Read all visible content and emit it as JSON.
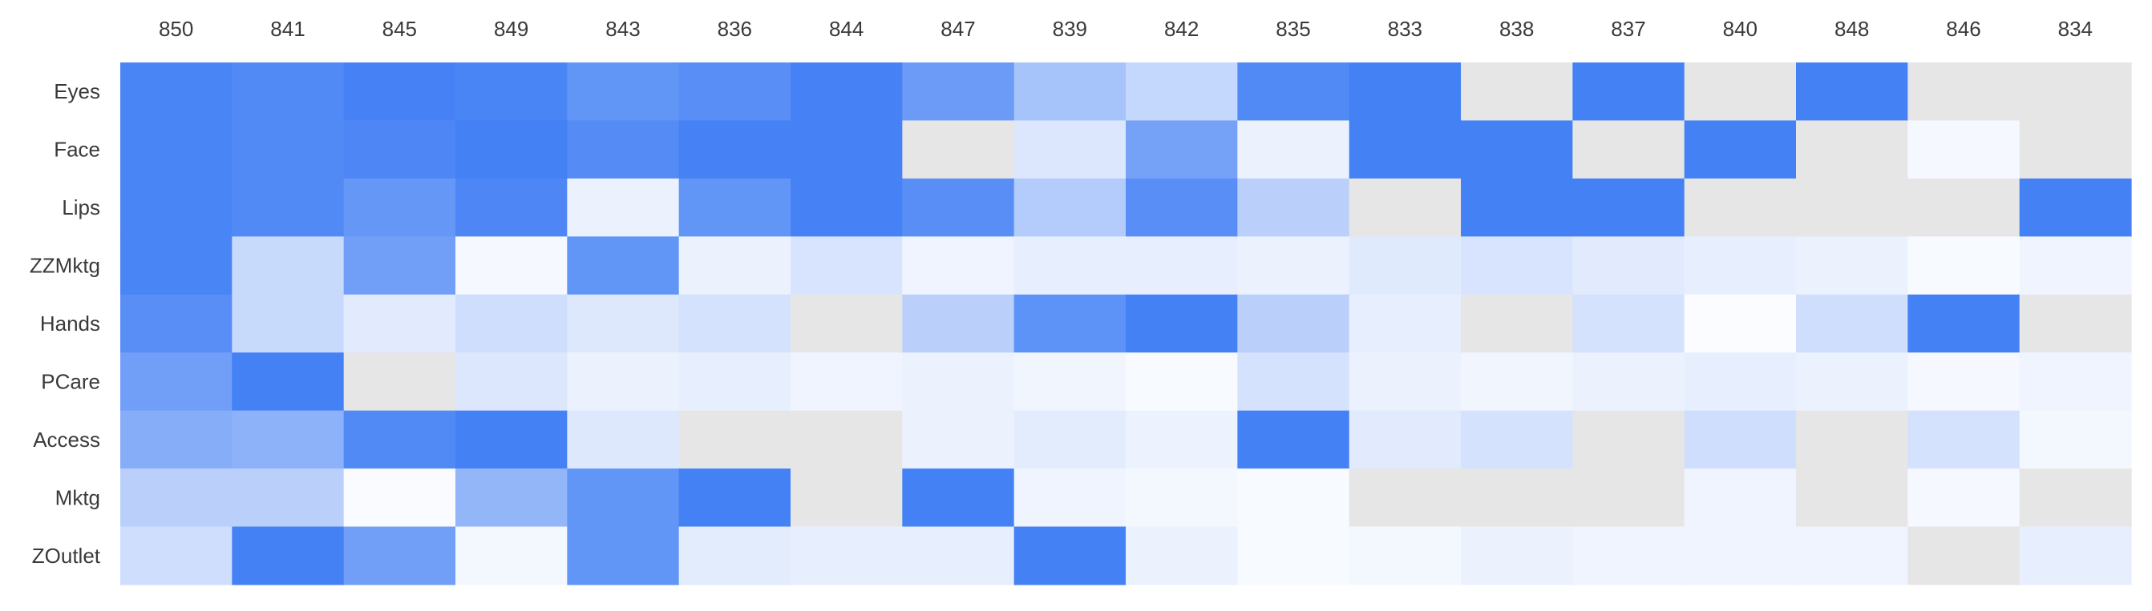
{
  "chart_data": {
    "type": "heatmap",
    "title": "",
    "xlabel": "",
    "ylabel": "",
    "columns": [
      "850",
      "841",
      "845",
      "849",
      "843",
      "836",
      "844",
      "847",
      "839",
      "842",
      "835",
      "833",
      "838",
      "837",
      "840",
      "848",
      "846",
      "834"
    ],
    "rows": [
      "Eyes",
      "Face",
      "Lips",
      "ZZMktg",
      "Hands",
      "PCare",
      "Access",
      "Mktg",
      "ZOutlet"
    ],
    "values": [
      [
        0.92,
        0.88,
        0.94,
        0.92,
        0.8,
        0.85,
        0.94,
        0.75,
        0.45,
        0.3,
        0.88,
        0.95,
        null,
        0.95,
        null,
        0.95,
        null,
        null
      ],
      [
        0.92,
        0.88,
        0.9,
        0.95,
        0.87,
        0.94,
        0.94,
        null,
        0.18,
        0.7,
        0.1,
        0.95,
        0.95,
        null,
        0.95,
        null,
        0.05,
        null
      ],
      [
        0.92,
        0.88,
        0.78,
        0.9,
        0.1,
        0.8,
        0.94,
        0.85,
        0.38,
        0.85,
        0.35,
        null,
        0.95,
        0.95,
        null,
        null,
        null,
        0.95
      ],
      [
        0.92,
        0.28,
        0.72,
        0.05,
        0.8,
        0.1,
        0.2,
        0.08,
        0.12,
        0.12,
        0.1,
        0.16,
        0.2,
        0.15,
        0.12,
        0.1,
        0.04,
        0.08
      ],
      [
        0.85,
        0.28,
        0.15,
        0.25,
        0.17,
        0.22,
        null,
        0.35,
        0.82,
        0.95,
        0.35,
        0.12,
        null,
        0.22,
        0.02,
        0.25,
        0.95,
        null
      ],
      [
        0.72,
        0.95,
        null,
        0.18,
        0.1,
        0.12,
        0.08,
        0.1,
        0.07,
        0.04,
        0.22,
        0.1,
        0.07,
        0.1,
        0.12,
        0.1,
        0.05,
        0.08
      ],
      [
        0.62,
        0.58,
        0.88,
        0.95,
        0.17,
        null,
        null,
        0.1,
        0.14,
        0.09,
        0.95,
        0.15,
        0.22,
        null,
        0.25,
        null,
        0.22,
        0.06
      ],
      [
        0.35,
        0.35,
        0.03,
        0.55,
        0.8,
        0.95,
        null,
        0.95,
        0.08,
        0.06,
        0.04,
        null,
        null,
        null,
        0.08,
        null,
        0.05,
        null
      ],
      [
        0.25,
        0.95,
        0.72,
        0.06,
        0.8,
        0.14,
        0.12,
        0.12,
        0.95,
        0.1,
        0.04,
        0.06,
        0.1,
        0.08,
        0.08,
        0.08,
        null,
        0.12
      ]
    ],
    "value_range": [
      0,
      1
    ],
    "color_low": "#ffffff",
    "color_high": "#3a7af4",
    "missing_color": "#e6e6e6",
    "grid": false,
    "legend": "none"
  }
}
